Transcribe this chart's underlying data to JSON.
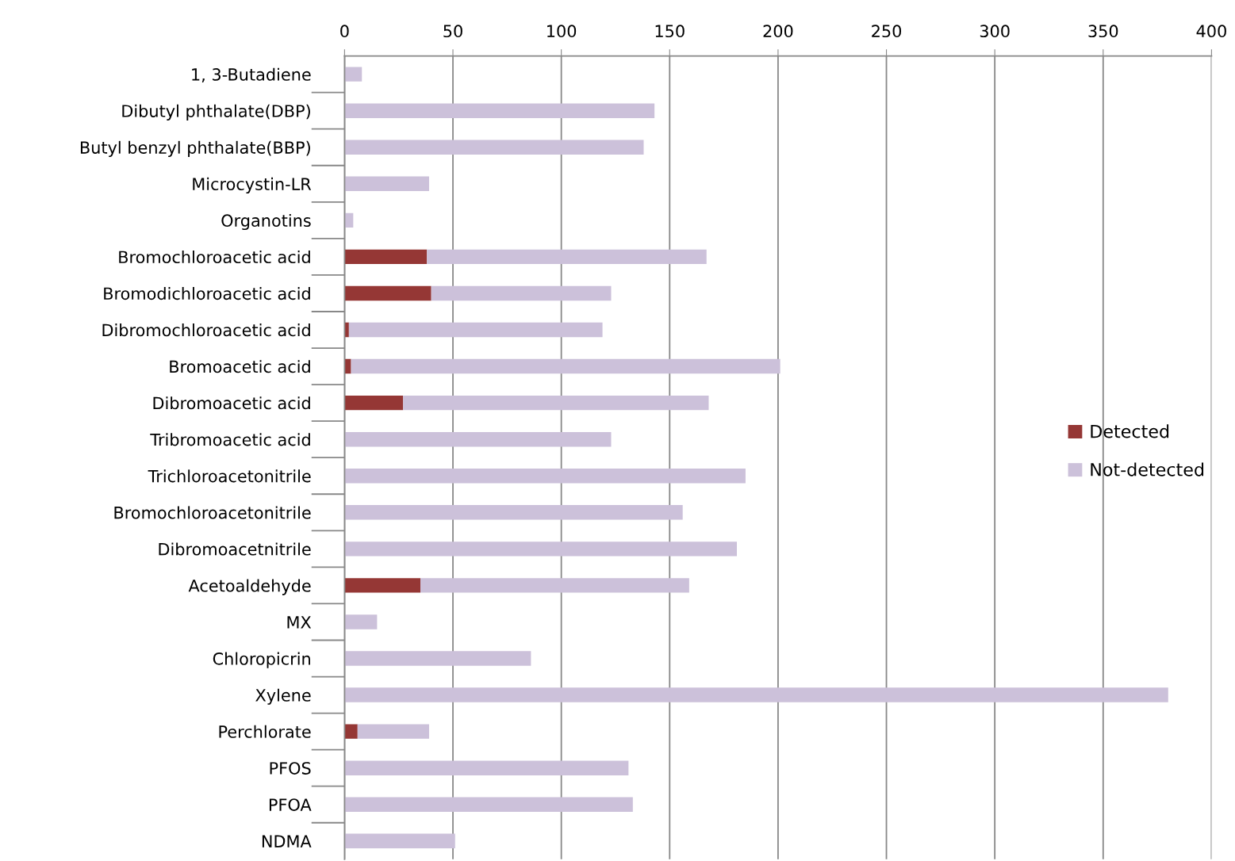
{
  "chart_data": {
    "type": "bar",
    "orientation": "horizontal",
    "stacked": true,
    "categories": [
      "1, 3-Butadiene",
      "Dibutyl phthalate(DBP)",
      "Butyl benzyl phthalate(BBP)",
      "Microcystin-LR",
      "Organotins",
      "Bromochloroacetic acid",
      "Bromodichloroacetic acid",
      "Dibromochloroacetic acid",
      "Bromoacetic acid",
      "Dibromoacetic acid",
      "Tribromoacetic acid",
      "Trichloroacetonitrile",
      "Bromochloroacetonitrile",
      "Dibromoacetnitrile",
      "Acetoaldehyde",
      "MX",
      "Chloropicrin",
      "Xylene",
      "Perchlorate",
      "PFOS",
      "PFOA",
      "NDMA"
    ],
    "series": [
      {
        "name": "Detected",
        "color": "#953735",
        "values": [
          0,
          0,
          0,
          0,
          0,
          38,
          40,
          2,
          3,
          27,
          0,
          0,
          0,
          0,
          35,
          0,
          0,
          0,
          6,
          0,
          0,
          0
        ]
      },
      {
        "name": "Not-detected",
        "color": "#ccc1da",
        "values": [
          8,
          143,
          138,
          39,
          4,
          129,
          83,
          117,
          198,
          141,
          123,
          185,
          156,
          181,
          124,
          15,
          86,
          380,
          33,
          131,
          133,
          51
        ]
      }
    ],
    "xlim": [
      0,
      400
    ],
    "xticks": [
      0,
      50,
      100,
      150,
      200,
      250,
      300,
      350,
      400
    ],
    "grid": "x",
    "legend": "right"
  }
}
